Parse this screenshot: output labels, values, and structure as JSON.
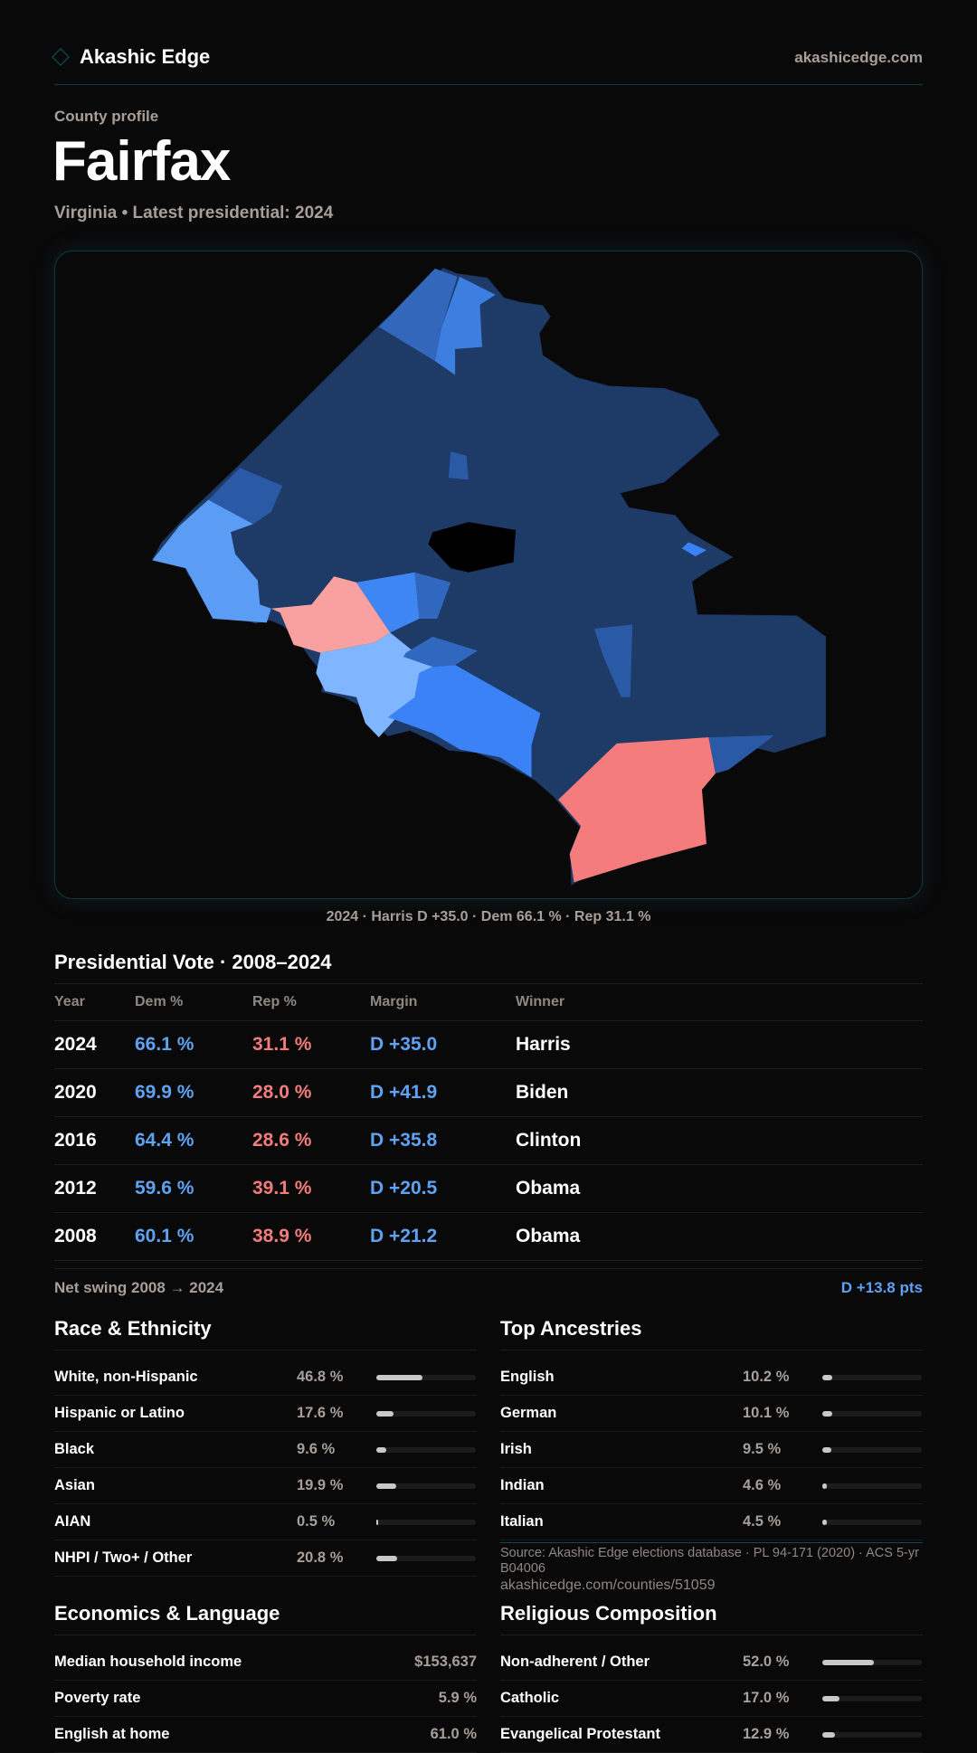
{
  "header": {
    "brand": "Akashic Edge",
    "site": "akashicedge.com"
  },
  "page": {
    "kicker": "County profile",
    "title": "Fairfax",
    "subtitle": "Virginia • Latest presidential: 2024"
  },
  "map": {
    "caption": "2024 · Harris D +35.0 · Dem 66.1 % · Rep 31.1 %",
    "colors": {
      "dem_strong": "#1e3a66",
      "dem_medium": "#2a5aa5",
      "dem_bright": "#3b82f6",
      "dem_light": "#80b6ff",
      "rep_light": "#f9a0a0",
      "rep": "#f47c7c"
    }
  },
  "presidential": {
    "title": "Presidential Vote · 2008–2024",
    "columns": [
      "Year",
      "Dem %",
      "Rep %",
      "Margin",
      "Winner"
    ],
    "rows": [
      {
        "year": "2024",
        "dem": "66.1 %",
        "rep": "31.1 %",
        "margin": "D +35.0",
        "winner": "Harris"
      },
      {
        "year": "2020",
        "dem": "69.9 %",
        "rep": "28.0 %",
        "margin": "D +41.9",
        "winner": "Biden"
      },
      {
        "year": "2016",
        "dem": "64.4 %",
        "rep": "28.6 %",
        "margin": "D +35.8",
        "winner": "Clinton"
      },
      {
        "year": "2012",
        "dem": "59.6 %",
        "rep": "39.1 %",
        "margin": "D +20.5",
        "winner": "Obama"
      },
      {
        "year": "2008",
        "dem": "60.1 %",
        "rep": "38.9 %",
        "margin": "D +21.2",
        "winner": "Obama"
      }
    ],
    "swing_label": "Net swing 2008 → 2024",
    "swing_value": "D +13.8 pts"
  },
  "race": {
    "title": "Race & Ethnicity",
    "rows": [
      {
        "label": "White, non-Hispanic",
        "value": "46.8 %",
        "pct": 46.8
      },
      {
        "label": "Hispanic or Latino",
        "value": "17.6 %",
        "pct": 17.6
      },
      {
        "label": "Black",
        "value": "9.6 %",
        "pct": 9.6
      },
      {
        "label": "Asian",
        "value": "19.9 %",
        "pct": 19.9
      },
      {
        "label": "AIAN",
        "value": "0.5 %",
        "pct": 0.5
      },
      {
        "label": "NHPI / Two+ / Other",
        "value": "20.8 %",
        "pct": 20.8
      }
    ]
  },
  "ancestries": {
    "title": "Top Ancestries",
    "rows": [
      {
        "label": "English",
        "value": "10.2 %",
        "pct": 10.2
      },
      {
        "label": "German",
        "value": "10.1 %",
        "pct": 10.1
      },
      {
        "label": "Irish",
        "value": "9.5 %",
        "pct": 9.5
      },
      {
        "label": "Indian",
        "value": "4.6 %",
        "pct": 4.6
      },
      {
        "label": "Italian",
        "value": "4.5 %",
        "pct": 4.5
      }
    ]
  },
  "economics": {
    "title": "Economics & Language",
    "rows": [
      {
        "label": "Median household income",
        "value": "$153,637"
      },
      {
        "label": "Poverty rate",
        "value": "5.9 %"
      },
      {
        "label": "English at home",
        "value": "61.0 %"
      }
    ]
  },
  "religion": {
    "title": "Religious Composition",
    "rows": [
      {
        "label": "Non-adherent / Other",
        "value": "52.0 %",
        "pct": 52.0
      },
      {
        "label": "Catholic",
        "value": "17.0 %",
        "pct": 17.0
      },
      {
        "label": "Evangelical Protestant",
        "value": "12.9 %",
        "pct": 12.9
      }
    ]
  },
  "footer": {
    "source": "Source: Akashic Edge elections database · PL 94-171 (2020) · ACS 5-yr B04006",
    "url": "akashicedge.com/counties/51059"
  }
}
